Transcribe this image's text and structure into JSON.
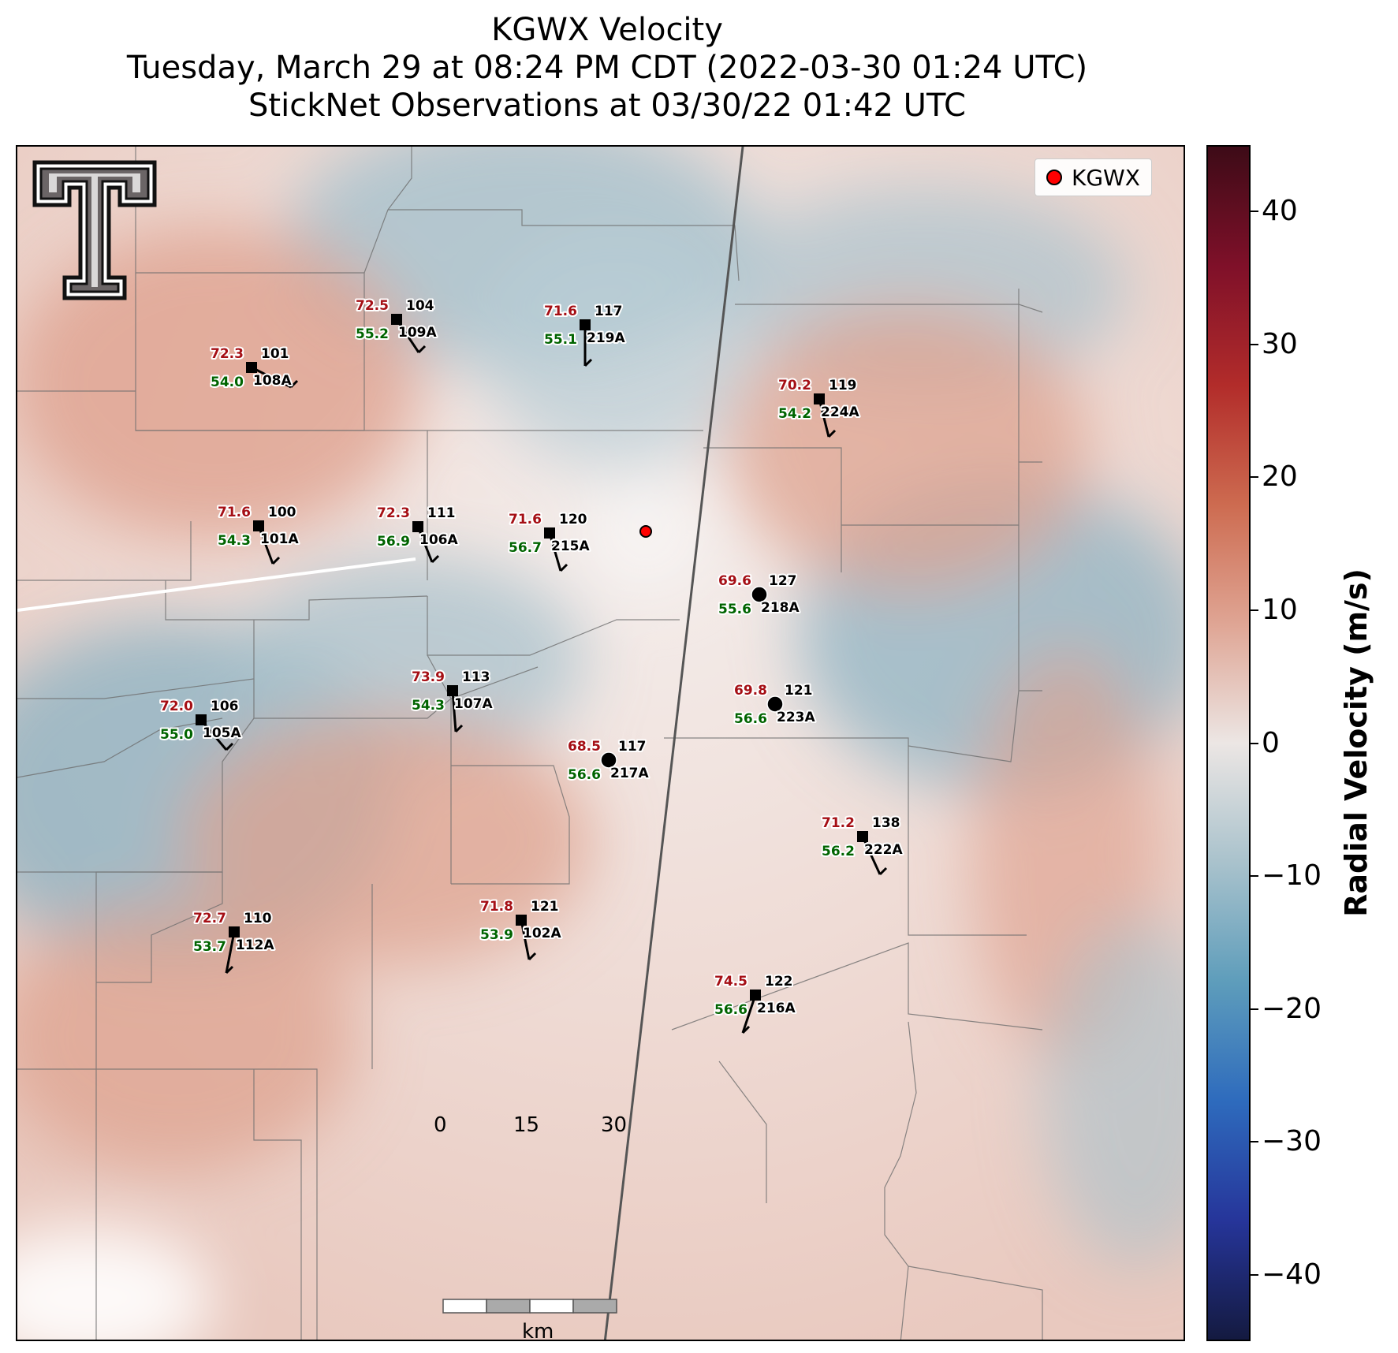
{
  "title": {
    "line1": "KGWX Velocity",
    "line2": "Tuesday, March 29 at 08:24 PM CDT (2022-03-30 01:24 UTC)",
    "line3": "StickNet Observations at 03/30/22 01:42 UTC"
  },
  "legend": {
    "label": "KGWX",
    "marker_color": "#ff0000"
  },
  "logo": {
    "name": "texas-tech-double-t-logo"
  },
  "colorbar": {
    "title": "Radial Velocity (m/s)",
    "ticks": [
      "40",
      "30",
      "20",
      "10",
      "0",
      "−10",
      "−20",
      "−30",
      "−40"
    ],
    "range": [
      -45,
      45
    ],
    "colors": {
      "positive": "#b22c2a",
      "zero": "#ece6e4",
      "negative": "#5e9dbb"
    }
  },
  "scale_bar": {
    "labels": [
      "0",
      "15",
      "30"
    ],
    "unit": "km"
  },
  "stations": [
    {
      "id": "108A",
      "temp": "72.3",
      "gust": "101",
      "dew": "54.0"
    },
    {
      "id": "109A",
      "temp": "72.5",
      "gust": "104",
      "dew": "55.2"
    },
    {
      "id": "219A",
      "temp": "71.6",
      "gust": "117",
      "dew": "55.1"
    },
    {
      "id": "224A",
      "temp": "70.2",
      "gust": "119",
      "dew": "54.2"
    },
    {
      "id": "101A",
      "temp": "71.6",
      "gust": "100",
      "dew": "54.3"
    },
    {
      "id": "106A",
      "temp": "72.3",
      "gust": "111",
      "dew": "56.9"
    },
    {
      "id": "215A",
      "temp": "71.6",
      "gust": "120",
      "dew": "56.7"
    },
    {
      "id": "218A",
      "temp": "69.6",
      "gust": "127",
      "dew": "55.6"
    },
    {
      "id": "107A",
      "temp": "73.9",
      "gust": "113",
      "dew": "54.3"
    },
    {
      "id": "105A",
      "temp": "72.0",
      "gust": "106",
      "dew": "55.0"
    },
    {
      "id": "223A",
      "temp": "69.8",
      "gust": "121",
      "dew": "56.6"
    },
    {
      "id": "217A",
      "temp": "68.5",
      "gust": "117",
      "dew": "56.6"
    },
    {
      "id": "222A",
      "temp": "71.2",
      "gust": "138",
      "dew": "56.2"
    },
    {
      "id": "112A",
      "temp": "72.7",
      "gust": "110",
      "dew": "53.7"
    },
    {
      "id": "102A",
      "temp": "71.8",
      "gust": "121",
      "dew": "53.9"
    },
    {
      "id": "216A",
      "temp": "74.5",
      "gust": "122",
      "dew": "56.6"
    }
  ],
  "text_colors": {
    "temp": "#a50f15",
    "dew": "#006400",
    "id": "#000000"
  }
}
